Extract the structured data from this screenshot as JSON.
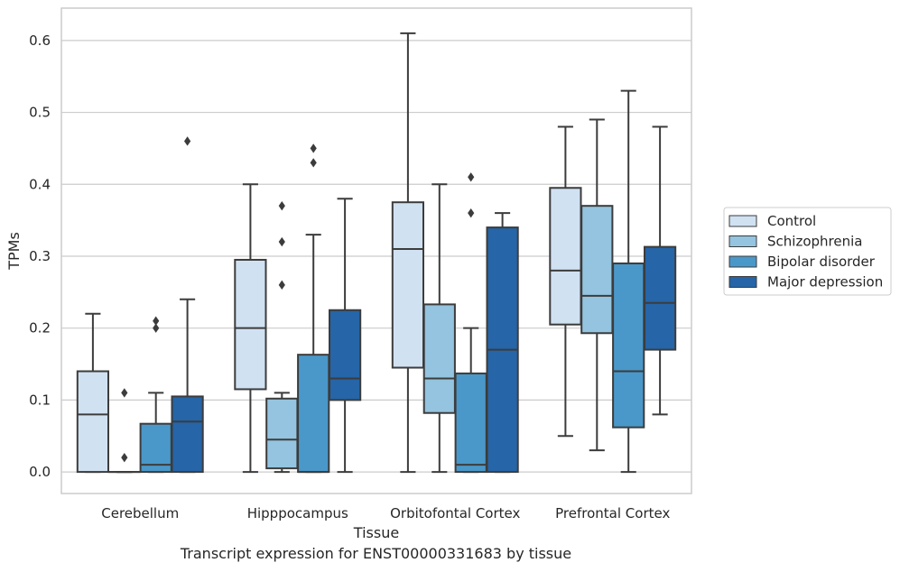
{
  "caption": "Transcript expression for ENST00000331683 by tissue",
  "chart_data": {
    "type": "box",
    "xlabel": "Tissue",
    "ylabel": "TPMs",
    "ylim": [
      -0.03,
      0.645
    ],
    "yticks": [
      0.0,
      0.1,
      0.2,
      0.3,
      0.4,
      0.5,
      0.6
    ],
    "ytick_labels": [
      "0.0",
      "0.1",
      "0.2",
      "0.3",
      "0.4",
      "0.5",
      "0.6"
    ],
    "grid": "horizontal",
    "legend_position": "right",
    "categories": [
      "Cerebellum",
      "Hipppocampus",
      "Orbitofontal Cortex",
      "Prefrontal Cortex"
    ],
    "series": [
      {
        "name": "Control",
        "color": "#d0e1f2",
        "boxes": [
          {
            "whislo": 0.0,
            "q1": 0.0,
            "med": 0.08,
            "q3": 0.14,
            "whishi": 0.22,
            "fliers": []
          },
          {
            "whislo": 0.0,
            "q1": 0.115,
            "med": 0.2,
            "q3": 0.295,
            "whishi": 0.4,
            "fliers": []
          },
          {
            "whislo": 0.0,
            "q1": 0.145,
            "med": 0.31,
            "q3": 0.375,
            "whishi": 0.61,
            "fliers": []
          },
          {
            "whislo": 0.05,
            "q1": 0.205,
            "med": 0.28,
            "q3": 0.395,
            "whishi": 0.48,
            "fliers": []
          }
        ]
      },
      {
        "name": "Schizophrenia",
        "color": "#94c4df",
        "boxes": [
          {
            "whislo": 0.0,
            "q1": 0.0,
            "med": 0.0,
            "q3": 0.0,
            "whishi": 0.0,
            "fliers": [
              0.02,
              0.11
            ]
          },
          {
            "whislo": 0.0,
            "q1": 0.005,
            "med": 0.045,
            "q3": 0.102,
            "whishi": 0.11,
            "fliers": [
              0.26,
              0.32,
              0.37
            ]
          },
          {
            "whislo": 0.0,
            "q1": 0.082,
            "med": 0.13,
            "q3": 0.233,
            "whishi": 0.4,
            "fliers": []
          },
          {
            "whislo": 0.03,
            "q1": 0.193,
            "med": 0.245,
            "q3": 0.37,
            "whishi": 0.49,
            "fliers": []
          }
        ]
      },
      {
        "name": "Bipolar disorder",
        "color": "#4a98c9",
        "boxes": [
          {
            "whislo": 0.0,
            "q1": 0.0,
            "med": 0.01,
            "q3": 0.067,
            "whishi": 0.11,
            "fliers": [
              0.2,
              0.21
            ]
          },
          {
            "whislo": 0.0,
            "q1": 0.0,
            "med": 0.0,
            "q3": 0.163,
            "whishi": 0.33,
            "fliers": [
              0.43,
              0.45
            ]
          },
          {
            "whislo": 0.0,
            "q1": 0.0,
            "med": 0.01,
            "q3": 0.137,
            "whishi": 0.2,
            "fliers": [
              0.36,
              0.41
            ]
          },
          {
            "whislo": 0.0,
            "q1": 0.062,
            "med": 0.14,
            "q3": 0.29,
            "whishi": 0.53,
            "fliers": []
          }
        ]
      },
      {
        "name": "Major depression",
        "color": "#2565a8",
        "boxes": [
          {
            "whislo": 0.0,
            "q1": 0.0,
            "med": 0.07,
            "q3": 0.105,
            "whishi": 0.24,
            "fliers": [
              0.46
            ]
          },
          {
            "whislo": 0.0,
            "q1": 0.1,
            "med": 0.13,
            "q3": 0.225,
            "whishi": 0.38,
            "fliers": []
          },
          {
            "whislo": 0.0,
            "q1": 0.0,
            "med": 0.17,
            "q3": 0.34,
            "whishi": 0.36,
            "fliers": []
          },
          {
            "whislo": 0.08,
            "q1": 0.17,
            "med": 0.235,
            "q3": 0.313,
            "whishi": 0.48,
            "fliers": []
          }
        ]
      }
    ]
  }
}
